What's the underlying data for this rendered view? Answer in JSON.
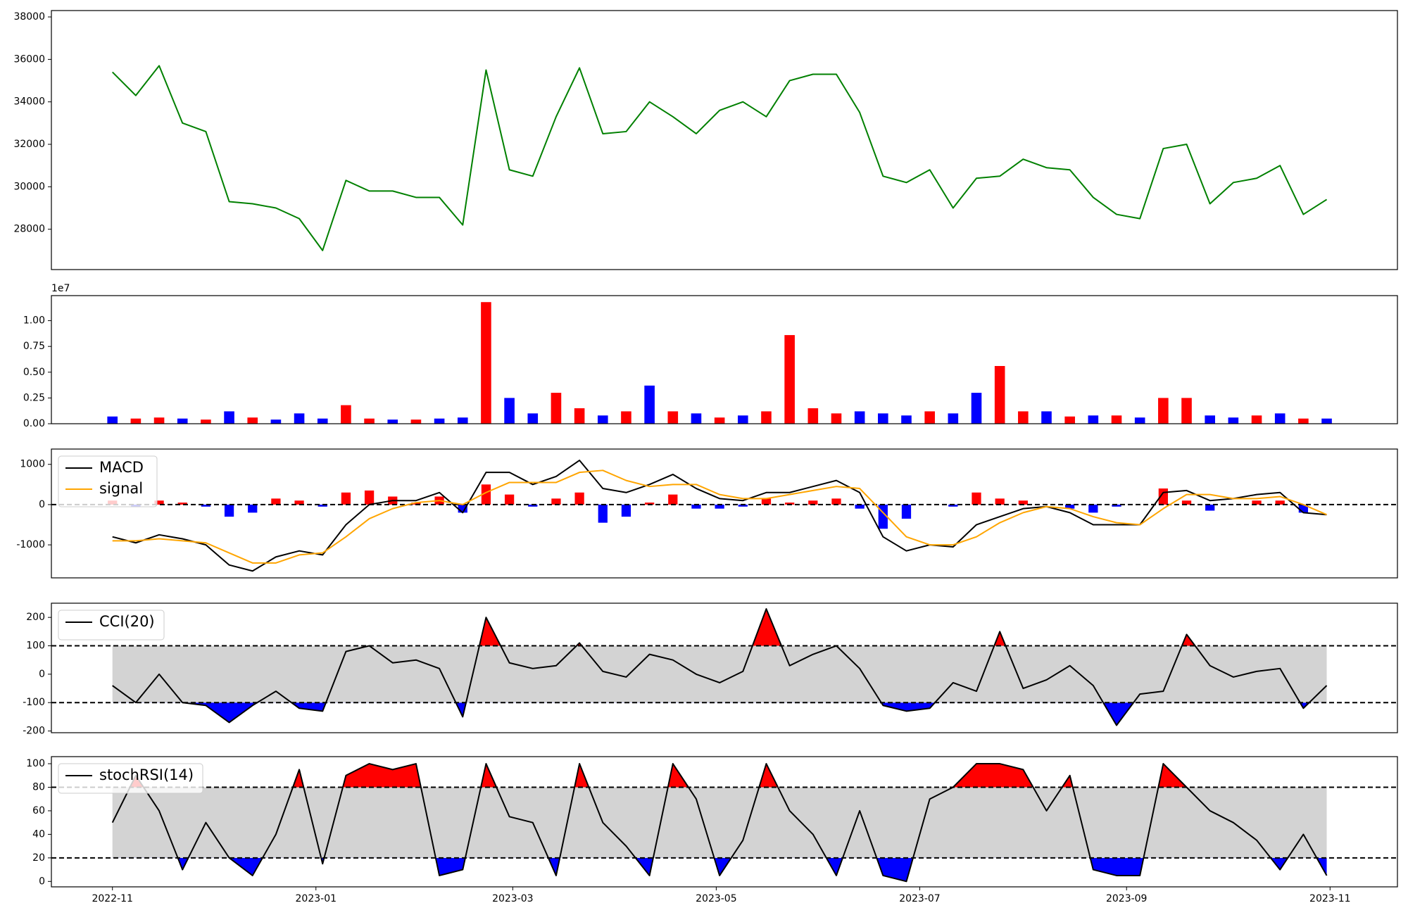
{
  "chart_data": [
    {
      "type": "line",
      "color": "#008000",
      "x": [
        0,
        7,
        14,
        21,
        28,
        35,
        42,
        49,
        56,
        63,
        70,
        77,
        84,
        91,
        98,
        105,
        112,
        119,
        126,
        133,
        140,
        147,
        154,
        161,
        168,
        175,
        182,
        189,
        196,
        203,
        210,
        217,
        224,
        231,
        238,
        245,
        252,
        259,
        266,
        273,
        280,
        287,
        294,
        301,
        308,
        315,
        322,
        329,
        336,
        343,
        350,
        357,
        364
      ],
      "values": [
        35400,
        34300,
        35700,
        33000,
        32600,
        29300,
        29200,
        29000,
        28500,
        27000,
        30300,
        29800,
        29800,
        29500,
        29500,
        28200,
        35500,
        30800,
        30500,
        33300,
        35600,
        32500,
        32600,
        34000,
        33300,
        32500,
        33600,
        34000,
        33300,
        35000,
        35300,
        35300,
        33500,
        30500,
        30200,
        30800,
        29000,
        30400,
        30500,
        31300,
        30900,
        30800,
        29500,
        28700,
        28500,
        31800,
        32000,
        29200,
        30200,
        30400,
        31000,
        28700,
        29400
      ],
      "xlim": [
        -18.3,
        385.2
      ],
      "ylim": [
        26100,
        38300
      ],
      "yticks": [
        28000,
        30000,
        32000,
        34000,
        36000,
        38000
      ]
    },
    {
      "type": "bar",
      "offset_label": "1e7",
      "x": [
        0,
        7,
        14,
        21,
        28,
        35,
        42,
        49,
        56,
        63,
        70,
        77,
        84,
        91,
        98,
        105,
        112,
        119,
        126,
        133,
        140,
        147,
        154,
        161,
        168,
        175,
        182,
        189,
        196,
        203,
        210,
        217,
        224,
        231,
        238,
        245,
        252,
        259,
        266,
        273,
        280,
        287,
        294,
        301,
        308,
        315,
        322,
        329,
        336,
        343,
        350,
        357,
        364
      ],
      "values": [
        0.07,
        0.05,
        0.06,
        0.05,
        0.04,
        0.12,
        0.06,
        0.04,
        0.1,
        0.05,
        0.18,
        0.05,
        0.04,
        0.04,
        0.05,
        0.06,
        1.18,
        0.25,
        0.1,
        0.3,
        0.15,
        0.08,
        0.12,
        0.37,
        0.12,
        0.1,
        0.06,
        0.08,
        0.12,
        0.86,
        0.15,
        0.1,
        0.12,
        0.1,
        0.08,
        0.12,
        0.1,
        0.3,
        0.56,
        0.12,
        0.12,
        0.07,
        0.08,
        0.08,
        0.06,
        0.25,
        0.25,
        0.08,
        0.06,
        0.08,
        0.1,
        0.05,
        0.05
      ],
      "colors": [
        "blue",
        "red",
        "red",
        "blue",
        "red",
        "blue",
        "red",
        "blue",
        "blue",
        "blue",
        "red",
        "red",
        "blue",
        "red",
        "blue",
        "blue",
        "red",
        "blue",
        "blue",
        "red",
        "red",
        "blue",
        "red",
        "blue",
        "red",
        "blue",
        "red",
        "blue",
        "red",
        "red",
        "red",
        "red",
        "blue",
        "blue",
        "blue",
        "red",
        "blue",
        "blue",
        "red",
        "red",
        "blue",
        "red",
        "blue",
        "red",
        "blue",
        "red",
        "red",
        "blue",
        "blue",
        "red",
        "blue",
        "red",
        "blue"
      ],
      "xlim": [
        -18.3,
        385.2
      ],
      "ylim": [
        0,
        1.243
      ],
      "yticks": [
        {
          "value": 0,
          "label": "0.00"
        },
        {
          "value": 0.25,
          "label": "0.25"
        },
        {
          "value": 0.5,
          "label": "0.50"
        },
        {
          "value": 0.75,
          "label": "0.75"
        },
        {
          "value": 1,
          "label": "1.00"
        }
      ]
    },
    {
      "type": "macd",
      "hline": 0,
      "pos_color": "red",
      "neg_color": "blue",
      "x": [
        0,
        7,
        14,
        21,
        28,
        35,
        42,
        49,
        56,
        63,
        70,
        77,
        84,
        91,
        98,
        105,
        112,
        119,
        126,
        133,
        140,
        147,
        154,
        161,
        168,
        175,
        182,
        189,
        196,
        203,
        210,
        217,
        224,
        231,
        238,
        245,
        252,
        259,
        266,
        273,
        280,
        287,
        294,
        301,
        308,
        315,
        322,
        329,
        336,
        343,
        350,
        357,
        364
      ],
      "series": [
        {
          "name": "MACD",
          "color": "#000000",
          "values": [
            -800,
            -950,
            -750,
            -850,
            -1000,
            -1500,
            -1650,
            -1300,
            -1150,
            -1250,
            -500,
            0,
            100,
            100,
            300,
            -200,
            800,
            800,
            500,
            700,
            1100,
            400,
            300,
            500,
            750,
            400,
            150,
            100,
            300,
            300,
            450,
            600,
            300,
            -800,
            -1150,
            -1000,
            -1050,
            -500,
            -300,
            -100,
            -50,
            -200,
            -500,
            -500,
            -500,
            300,
            350,
            100,
            150,
            250,
            300,
            -200,
            -250
          ]
        },
        {
          "name": "signal",
          "color": "#ffa500",
          "values": [
            -900,
            -900,
            -850,
            -900,
            -950,
            -1200,
            -1450,
            -1450,
            -1250,
            -1200,
            -800,
            -350,
            -100,
            50,
            100,
            0,
            300,
            550,
            550,
            550,
            800,
            850,
            600,
            450,
            500,
            500,
            250,
            150,
            150,
            250,
            350,
            450,
            400,
            -200,
            -800,
            -1000,
            -1000,
            -800,
            -450,
            -200,
            -50,
            -100,
            -300,
            -450,
            -500,
            -100,
            250,
            250,
            150,
            150,
            200,
            0,
            -250
          ]
        }
      ],
      "histogram": [
        100,
        -50,
        100,
        50,
        -50,
        -300,
        -200,
        150,
        100,
        -50,
        300,
        350,
        200,
        50,
        200,
        -200,
        500,
        250,
        -50,
        150,
        300,
        -450,
        -300,
        50,
        250,
        -100,
        -100,
        -50,
        150,
        50,
        100,
        150,
        -100,
        -600,
        -350,
        0,
        -50,
        300,
        150,
        100,
        0,
        -100,
        -200,
        -50,
        0,
        400,
        100,
        -150,
        0,
        100,
        100,
        -200,
        0
      ],
      "xlim": [
        -18.3,
        385.2
      ],
      "ylim": [
        -1820,
        1380
      ],
      "yticks": [
        -1000,
        0,
        1000
      ]
    },
    {
      "type": "band",
      "upper": 100,
      "lower": -100,
      "band_color": "#d3d3d3",
      "above_color": "red",
      "below_color": "blue",
      "x": [
        0,
        7,
        14,
        21,
        28,
        35,
        42,
        49,
        56,
        63,
        70,
        77,
        84,
        91,
        98,
        105,
        112,
        119,
        126,
        133,
        140,
        147,
        154,
        161,
        168,
        175,
        182,
        189,
        196,
        203,
        210,
        217,
        224,
        231,
        238,
        245,
        252,
        259,
        266,
        273,
        280,
        287,
        294,
        301,
        308,
        315,
        322,
        329,
        336,
        343,
        350,
        357,
        364
      ],
      "series": [
        {
          "name": "CCI(20)",
          "color": "#000000",
          "values": [
            -40,
            -100,
            0,
            -100,
            -110,
            -170,
            -110,
            -60,
            -120,
            -130,
            80,
            100,
            40,
            50,
            20,
            -150,
            200,
            40,
            20,
            30,
            110,
            10,
            -10,
            70,
            50,
            0,
            -30,
            10,
            230,
            30,
            70,
            100,
            20,
            -110,
            -130,
            -120,
            -30,
            -60,
            150,
            -50,
            -20,
            30,
            -40,
            -180,
            -70,
            -60,
            140,
            30,
            -10,
            10,
            20,
            -120,
            -40
          ]
        }
      ],
      "xlim": [
        -18.3,
        385.2
      ],
      "ylim": [
        -206,
        250
      ],
      "yticks": [
        -200,
        -100,
        0,
        100,
        200
      ]
    },
    {
      "type": "band",
      "upper": 80,
      "lower": 20,
      "band_color": "#d3d3d3",
      "above_color": "red",
      "below_color": "blue",
      "x": [
        0,
        7,
        14,
        21,
        28,
        35,
        42,
        49,
        56,
        63,
        70,
        77,
        84,
        91,
        98,
        105,
        112,
        119,
        126,
        133,
        140,
        147,
        154,
        161,
        168,
        175,
        182,
        189,
        196,
        203,
        210,
        217,
        224,
        231,
        238,
        245,
        252,
        259,
        266,
        273,
        280,
        287,
        294,
        301,
        308,
        315,
        322,
        329,
        336,
        343,
        350,
        357,
        364
      ],
      "series": [
        {
          "name": "stochRSI(14)",
          "color": "#000000",
          "values": [
            50,
            90,
            60,
            10,
            50,
            20,
            5,
            40,
            95,
            15,
            90,
            100,
            95,
            100,
            5,
            10,
            100,
            55,
            50,
            5,
            100,
            50,
            30,
            5,
            100,
            70,
            5,
            35,
            100,
            60,
            40,
            5,
            60,
            5,
            0,
            70,
            80,
            100,
            100,
            95,
            60,
            90,
            10,
            5,
            5,
            100,
            80,
            60,
            50,
            35,
            10,
            40,
            5
          ]
        }
      ],
      "xlim": [
        -18.3,
        385.2
      ],
      "ylim": [
        -4.6,
        106
      ],
      "yticks": [
        0,
        20,
        40,
        60,
        80,
        100
      ],
      "xticks": [
        {
          "value": 0,
          "label": "2022-11"
        },
        {
          "value": 61,
          "label": "2023-01"
        },
        {
          "value": 120,
          "label": "2023-03"
        },
        {
          "value": 181,
          "label": "2023-05"
        },
        {
          "value": 242,
          "label": "2023-07"
        },
        {
          "value": 304,
          "label": "2023-09"
        },
        {
          "value": 365,
          "label": "2023-11"
        }
      ]
    }
  ]
}
